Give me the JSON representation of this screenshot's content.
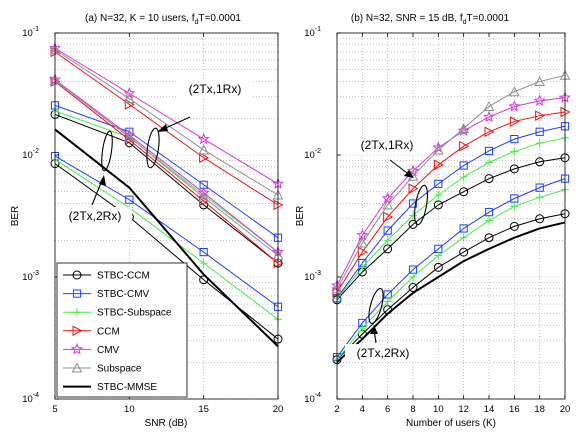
{
  "chart_data": [
    {
      "type": "line",
      "title": "(a) N=32, K = 10 users, f",
      "title_sub": "d",
      "title_tail": "T=0.0001",
      "xlabel": "SNR (dB)",
      "ylabel": "BER",
      "x": [
        5,
        10,
        15,
        20
      ],
      "xlim": [
        5,
        20
      ],
      "xticks": [
        "5",
        "10",
        "15",
        "20"
      ],
      "ylim": [
        0.0001,
        0.1
      ],
      "yscale": "log",
      "grid": true,
      "series": [
        {
          "name": "STBC-CCM",
          "color": "#000000",
          "marker": "circle",
          "values": [
            0.0215,
            0.0126,
            0.0039,
            0.0013
          ]
        },
        {
          "name": "STBC-CCM",
          "color": "#000000",
          "marker": "circle",
          "values": [
            0.0085,
            0.0031,
            0.00095,
            0.00031
          ]
        },
        {
          "name": "STBC-CMV",
          "color": "#1f3fff",
          "marker": "square",
          "values": [
            0.0255,
            0.0155,
            0.0057,
            0.0021
          ]
        },
        {
          "name": "STBC-CMV",
          "color": "#1f3fff",
          "marker": "square",
          "values": [
            0.0098,
            0.0043,
            0.0016,
            0.00057
          ]
        },
        {
          "name": "STBC-Subspace",
          "color": "#44ee44",
          "marker": "plus",
          "values": [
            0.023,
            0.014,
            0.0047,
            0.0016
          ]
        },
        {
          "name": "STBC-Subspace",
          "color": "#44ee44",
          "marker": "plus",
          "values": [
            0.0092,
            0.0037,
            0.0013,
            0.00045
          ]
        },
        {
          "name": "CCM",
          "color": "#ee1111",
          "marker": "triangle-right",
          "values": [
            0.07,
            0.026,
            0.0095,
            0.0039
          ]
        },
        {
          "name": "CCM",
          "color": "#ee1111",
          "marker": "triangle-right",
          "values": [
            0.04,
            0.0133,
            0.0042,
            0.0013
          ]
        },
        {
          "name": "CMV",
          "color": "#dd33dd",
          "marker": "star",
          "values": [
            0.075,
            0.032,
            0.0135,
            0.0058
          ]
        },
        {
          "name": "CMV",
          "color": "#dd33dd",
          "marker": "star",
          "values": [
            0.0415,
            0.0145,
            0.0049,
            0.0016
          ]
        },
        {
          "name": "Subspace",
          "color": "#909090",
          "marker": "triangle-up",
          "values": [
            0.073,
            0.029,
            0.011,
            0.0047
          ]
        },
        {
          "name": "Subspace",
          "color": "#909090",
          "marker": "triangle-up",
          "values": [
            0.041,
            0.014,
            0.0045,
            0.0015
          ]
        },
        {
          "name": "STBC-MMSE",
          "color": "#000000",
          "marker": "none",
          "bold": true,
          "values": [
            0.0162,
            0.0054,
            0.00105,
            0.00027
          ]
        }
      ],
      "annotations": [
        "(2Tx,1Rx)",
        "(2Tx,2Rx)"
      ]
    },
    {
      "type": "line",
      "title": "(b) N=32, SNR = 15 dB, f",
      "title_sub": "d",
      "title_tail": "T=0.0001",
      "xlabel": "Number of users (K)",
      "ylabel": "BER",
      "x": [
        2,
        4,
        6,
        8,
        10,
        12,
        14,
        16,
        18,
        20
      ],
      "xlim": [
        2,
        20
      ],
      "xticks": [
        "2",
        "4",
        "6",
        "8",
        "10",
        "12",
        "14",
        "16",
        "18",
        "20"
      ],
      "ylim": [
        0.0001,
        0.1
      ],
      "yscale": "log",
      "grid": true,
      "series": [
        {
          "name": "STBC-CCM",
          "color": "#000000",
          "marker": "circle",
          "values": [
            0.00065,
            0.0011,
            0.0017,
            0.0027,
            0.0039,
            0.005,
            0.0064,
            0.0077,
            0.0088,
            0.0095
          ]
        },
        {
          "name": "STBC-CCM",
          "color": "#000000",
          "marker": "circle",
          "values": [
            0.00021,
            0.00034,
            0.00054,
            0.00082,
            0.0012,
            0.0016,
            0.0021,
            0.0026,
            0.003,
            0.0033
          ]
        },
        {
          "name": "STBC-CMV",
          "color": "#1f3fff",
          "marker": "square",
          "values": [
            0.00067,
            0.0013,
            0.0024,
            0.004,
            0.0058,
            0.0082,
            0.0108,
            0.0135,
            0.0155,
            0.0172
          ]
        },
        {
          "name": "STBC-CMV",
          "color": "#1f3fff",
          "marker": "square",
          "values": [
            0.00022,
            0.00042,
            0.00072,
            0.00115,
            0.0017,
            0.0025,
            0.0034,
            0.0044,
            0.0054,
            0.0064
          ]
        },
        {
          "name": "STBC-Subspace",
          "color": "#44ee44",
          "marker": "plus",
          "values": [
            0.00066,
            0.0012,
            0.002,
            0.0032,
            0.0047,
            0.0066,
            0.0087,
            0.0107,
            0.0125,
            0.0138
          ]
        },
        {
          "name": "STBC-Subspace",
          "color": "#44ee44",
          "marker": "plus",
          "values": [
            0.00021,
            0.00038,
            0.00063,
            0.001,
            0.0015,
            0.0021,
            0.0029,
            0.0038,
            0.0045,
            0.0052
          ]
        },
        {
          "name": "CCM",
          "color": "#ee1111",
          "marker": "triangle-right",
          "values": [
            0.00075,
            0.0016,
            0.0031,
            0.0053,
            0.0083,
            0.0118,
            0.0155,
            0.0188,
            0.021,
            0.0225
          ]
        },
        {
          "name": "CMV",
          "color": "#dd33dd",
          "marker": "star",
          "values": [
            0.00085,
            0.0022,
            0.0044,
            0.0074,
            0.0115,
            0.0158,
            0.0205,
            0.025,
            0.0278,
            0.0295
          ]
        },
        {
          "name": "Subspace",
          "color": "#909090",
          "marker": "triangle-up",
          "values": [
            0.0008,
            0.0019,
            0.0039,
            0.0067,
            0.011,
            0.0165,
            0.025,
            0.033,
            0.04,
            0.045
          ]
        },
        {
          "name": "STBC-MMSE",
          "color": "#000000",
          "marker": "none",
          "bold": true,
          "values": [
            0.0002,
            0.00031,
            0.0005,
            0.00074,
            0.001,
            0.00135,
            0.0017,
            0.0021,
            0.0025,
            0.0028
          ]
        }
      ],
      "annotations": [
        "(2Tx,1Rx)",
        "(2Tx,2Rx)"
      ]
    }
  ],
  "axis_common": {
    "yticks": [
      {
        "value": 0.1,
        "base": "10",
        "exp": "-1"
      },
      {
        "value": 0.01,
        "base": "10",
        "exp": "-2"
      },
      {
        "value": 0.001,
        "base": "10",
        "exp": "-3"
      },
      {
        "value": 0.0001,
        "base": "10",
        "exp": "-4"
      }
    ]
  },
  "legend": {
    "placement": "bottom-left of panel (a)",
    "entries": [
      {
        "label": "STBC-CCM",
        "color": "#000000",
        "marker": "circle"
      },
      {
        "label": "STBC-CMV",
        "color": "#1f3fff",
        "marker": "square"
      },
      {
        "label": "STBC-Subspace",
        "color": "#44ee44",
        "marker": "plus"
      },
      {
        "label": "CCM",
        "color": "#ee1111",
        "marker": "triangle-right"
      },
      {
        "label": "CMV",
        "color": "#dd33dd",
        "marker": "star"
      },
      {
        "label": "Subspace",
        "color": "#909090",
        "marker": "triangle-up"
      },
      {
        "label": "STBC-MMSE",
        "color": "#000000",
        "marker": "none",
        "bold": true
      }
    ]
  }
}
